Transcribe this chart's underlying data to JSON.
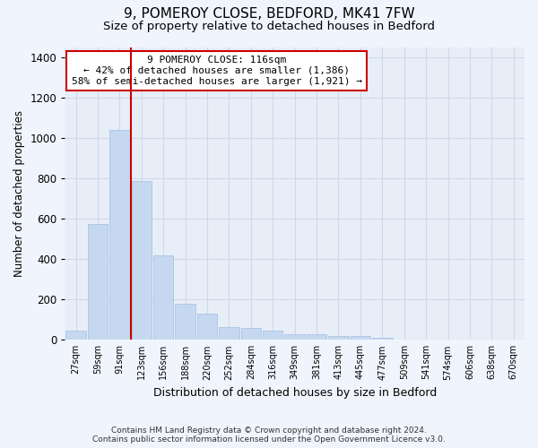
{
  "title1": "9, POMEROY CLOSE, BEDFORD, MK41 7FW",
  "title2": "Size of property relative to detached houses in Bedford",
  "xlabel": "Distribution of detached houses by size in Bedford",
  "ylabel": "Number of detached properties",
  "footer1": "Contains HM Land Registry data © Crown copyright and database right 2024.",
  "footer2": "Contains public sector information licensed under the Open Government Licence v3.0.",
  "annotation_line1": "9 POMEROY CLOSE: 116sqm",
  "annotation_line2": "← 42% of detached houses are smaller (1,386)",
  "annotation_line3": "58% of semi-detached houses are larger (1,921) →",
  "categories": [
    "27sqm",
    "59sqm",
    "91sqm",
    "123sqm",
    "156sqm",
    "188sqm",
    "220sqm",
    "252sqm",
    "284sqm",
    "316sqm",
    "349sqm",
    "381sqm",
    "413sqm",
    "445sqm",
    "477sqm",
    "509sqm",
    "541sqm",
    "574sqm",
    "606sqm",
    "638sqm",
    "670sqm"
  ],
  "values": [
    47,
    573,
    1040,
    785,
    420,
    180,
    128,
    62,
    57,
    47,
    28,
    27,
    20,
    17,
    12,
    0,
    0,
    0,
    0,
    0,
    0
  ],
  "bar_color": "#c5d8f0",
  "bar_edge_color": "#a0c0e0",
  "vline_color": "#cc0000",
  "vline_x_index": 3,
  "annotation_box_color": "#cc0000",
  "ylim": [
    0,
    1450
  ],
  "yticks": [
    0,
    200,
    400,
    600,
    800,
    1000,
    1200,
    1400
  ],
  "grid_color": "#d0d8e8",
  "bg_color": "#f0f4fc",
  "plot_bg_color": "#e8eef8"
}
